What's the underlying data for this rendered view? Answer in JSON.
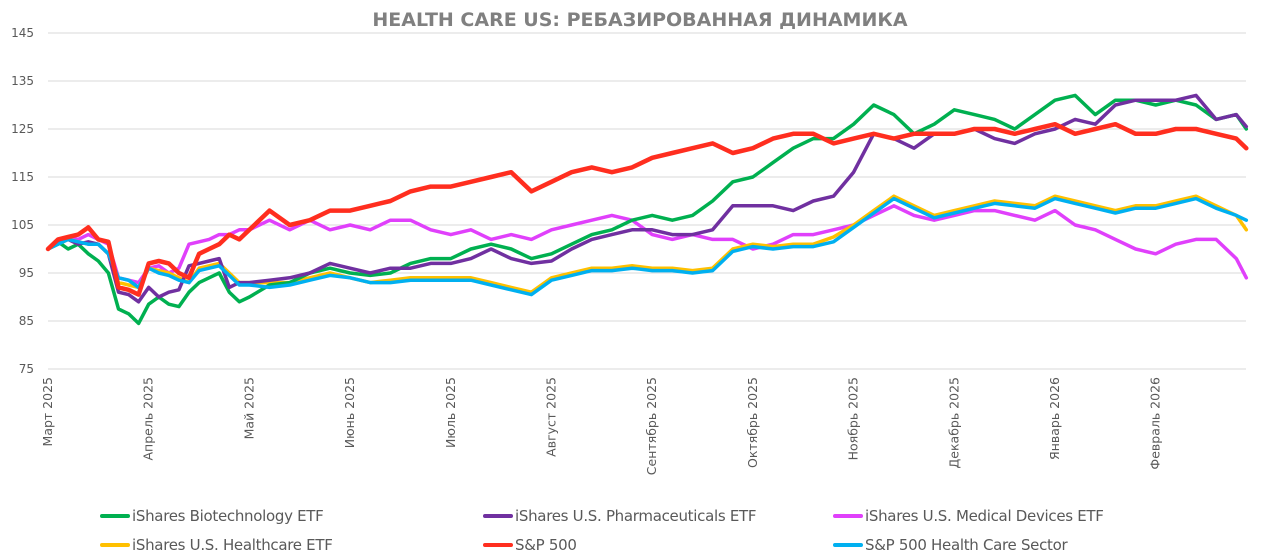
{
  "chart_data": {
    "type": "line",
    "title": "HEALTH CARE US: РЕБАЗИРОВАННАЯ ДИНАМИКА",
    "xlabel": "",
    "ylabel": "",
    "ylim": [
      75,
      145
    ],
    "yticks": [
      75,
      85,
      95,
      105,
      115,
      125,
      135,
      145
    ],
    "xlim": [
      0,
      11.9
    ],
    "x_unit": "months since start of March 2025",
    "xtick_positions": [
      0,
      1,
      2,
      3,
      4,
      5,
      6,
      7,
      8,
      9,
      10,
      11
    ],
    "xtick_labels": [
      "Март 2025",
      "Апрель 2025",
      "Май 2025",
      "Июнь 2025",
      "Июль 2025",
      "Август 2025",
      "Сентябрь 2025",
      "Октябрь 2025",
      "Ноябрь 2025",
      "Декабрь 2025",
      "Январь 2026",
      "Февраль 2026"
    ],
    "grid": true,
    "legend_position": "bottom",
    "x": [
      0,
      0.1,
      0.2,
      0.3,
      0.4,
      0.5,
      0.6,
      0.7,
      0.8,
      0.9,
      1.0,
      1.1,
      1.2,
      1.3,
      1.4,
      1.5,
      1.6,
      1.7,
      1.8,
      1.9,
      2.0,
      2.2,
      2.4,
      2.6,
      2.8,
      3.0,
      3.2,
      3.4,
      3.6,
      3.8,
      4.0,
      4.2,
      4.4,
      4.6,
      4.8,
      5.0,
      5.2,
      5.4,
      5.6,
      5.8,
      6.0,
      6.2,
      6.4,
      6.6,
      6.8,
      7.0,
      7.2,
      7.4,
      7.6,
      7.8,
      8.0,
      8.2,
      8.4,
      8.6,
      8.8,
      9.0,
      9.2,
      9.4,
      9.6,
      9.8,
      10.0,
      10.2,
      10.4,
      10.6,
      10.8,
      11.0,
      11.2,
      11.4,
      11.6,
      11.8,
      11.9
    ],
    "series": [
      {
        "name": "iShares Biotechnology ETF",
        "color": "#00B050",
        "values": [
          100,
          101.5,
          100,
          101,
          99,
          97.5,
          95,
          87.5,
          86.5,
          84.5,
          88.5,
          90,
          88.5,
          88,
          91,
          93,
          94,
          95,
          91,
          89,
          90,
          92.5,
          93,
          95,
          96,
          95,
          94.5,
          95,
          97,
          98,
          98,
          100,
          101,
          100,
          98,
          99,
          101,
          103,
          104,
          106,
          107,
          106,
          107,
          110,
          114,
          115,
          118,
          121,
          123,
          123,
          126,
          130,
          128,
          124,
          126,
          129,
          128,
          127,
          125,
          128,
          131,
          132,
          128,
          131,
          131,
          130,
          131,
          130,
          127,
          128,
          125
        ]
      },
      {
        "name": "iShares U.S. Pharmaceuticals ETF",
        "color": "#7030A0",
        "values": [
          100,
          101.5,
          102,
          101,
          101.5,
          101,
          99,
          91,
          90.5,
          89,
          92,
          90,
          91,
          91.5,
          96.5,
          97,
          97.5,
          98,
          92,
          93,
          93,
          93.5,
          94,
          95,
          97,
          96,
          95,
          96,
          96,
          97,
          97,
          98,
          100,
          98,
          97,
          97.5,
          100,
          102,
          103,
          104,
          104,
          103,
          103,
          104,
          109,
          109,
          109,
          108,
          110,
          111,
          116,
          124,
          123,
          121,
          124,
          124,
          125,
          123,
          122,
          124,
          125,
          127,
          126,
          130,
          131,
          131,
          131,
          132,
          127,
          128,
          125.5
        ]
      },
      {
        "name": "iShares U.S. Medical Devices ETF",
        "color": "#E040FB",
        "values": [
          100,
          101.5,
          102.5,
          102,
          103,
          102,
          101,
          94,
          93.5,
          93,
          96,
          96.5,
          95,
          96,
          101,
          101.5,
          102,
          103,
          103,
          104,
          104,
          106,
          104,
          106,
          104,
          105,
          104,
          106,
          106,
          104,
          103,
          104,
          102,
          103,
          102,
          104,
          105,
          106,
          107,
          106,
          103,
          102,
          103,
          102,
          102,
          100,
          101,
          103,
          103,
          104,
          105,
          107,
          109,
          107,
          106,
          107,
          108,
          108,
          107,
          106,
          108,
          105,
          104,
          102,
          100,
          99,
          101,
          102,
          102,
          98,
          94
        ]
      },
      {
        "name": "iShares U.S. Healthcare ETF",
        "color": "#FFC000",
        "values": [
          100,
          101,
          102,
          101.5,
          101,
          101,
          99,
          93,
          92.5,
          92,
          96,
          95.5,
          95,
          94,
          93,
          96,
          96.5,
          97,
          95,
          93,
          93,
          93,
          93,
          94,
          95,
          94,
          93,
          93.5,
          94,
          94,
          94,
          94,
          93,
          92,
          91,
          94,
          95,
          96,
          96,
          96.5,
          96,
          96,
          95.5,
          96,
          100,
          101,
          100.5,
          101,
          101,
          102.5,
          105,
          108,
          111,
          109,
          107,
          108,
          109,
          110,
          109.5,
          109,
          111,
          110,
          109,
          108,
          109,
          109,
          110,
          111,
          109,
          107,
          104
        ]
      },
      {
        "name": "S&P 500",
        "color": "#FF2E1F",
        "values": [
          100,
          102,
          102.5,
          103,
          104.5,
          102,
          101.5,
          92,
          91.5,
          90.5,
          97,
          97.5,
          97,
          95,
          94,
          99,
          100,
          101,
          103,
          102,
          104,
          108,
          105,
          106,
          108,
          108,
          109,
          110,
          112,
          113,
          113,
          114,
          115,
          116,
          112,
          114,
          116,
          117,
          116,
          117,
          119,
          120,
          121,
          122,
          120,
          121,
          123,
          124,
          124,
          122,
          123,
          124,
          123,
          124,
          124,
          124,
          125,
          125,
          124,
          125,
          126,
          124,
          125,
          126,
          124,
          124,
          125,
          125,
          124,
          123,
          121
        ]
      },
      {
        "name": "S&P 500 Health Care Sector",
        "color": "#00B0F0",
        "values": [
          100,
          101,
          102,
          101.5,
          101,
          101,
          99,
          94,
          93.5,
          92,
          96,
          95,
          94.5,
          93.5,
          93,
          95.5,
          96,
          96.5,
          94.5,
          92.5,
          92.5,
          92,
          92.5,
          93.5,
          94.5,
          94,
          93,
          93,
          93.5,
          93.5,
          93.5,
          93.5,
          92.5,
          91.5,
          90.5,
          93.5,
          94.5,
          95.5,
          95.5,
          96,
          95.5,
          95.5,
          95,
          95.5,
          99.5,
          100.5,
          100,
          100.5,
          100.5,
          101.5,
          104.5,
          107.5,
          110.5,
          108.5,
          106.5,
          107.5,
          108.5,
          109.5,
          109,
          108.5,
          110.5,
          109.5,
          108.5,
          107.5,
          108.5,
          108.5,
          109.5,
          110.5,
          108.5,
          107,
          106
        ]
      }
    ]
  }
}
